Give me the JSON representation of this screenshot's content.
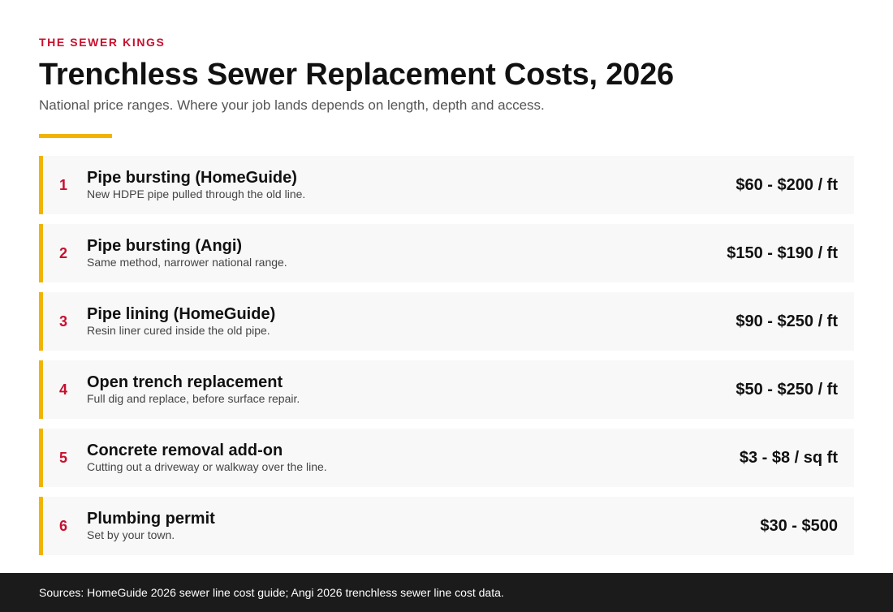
{
  "brand": "THE SEWER KINGS",
  "title": "Trenchless Sewer Replacement Costs, 2026",
  "subtitle": "National price ranges. Where your job lands depends on length, depth and access.",
  "colors": {
    "brand_red": "#c8102e",
    "accent_yellow": "#f0b400",
    "row_background": "#f8f8f8",
    "footer_background": "#1b1b1b"
  },
  "items": [
    {
      "number": "1",
      "name": "Pipe bursting (HomeGuide)",
      "description": "New HDPE pipe pulled through the old line.",
      "price": "$60 - $200 / ft"
    },
    {
      "number": "2",
      "name": "Pipe bursting (Angi)",
      "description": "Same method, narrower national range.",
      "price": "$150 - $190 / ft"
    },
    {
      "number": "3",
      "name": "Pipe lining (HomeGuide)",
      "description": "Resin liner cured inside the old pipe.",
      "price": "$90 - $250 / ft"
    },
    {
      "number": "4",
      "name": "Open trench replacement",
      "description": "Full dig and replace, before surface repair.",
      "price": "$50 - $250 / ft"
    },
    {
      "number": "5",
      "name": "Concrete removal add-on",
      "description": "Cutting out a driveway or walkway over the line.",
      "price": "$3 - $8 / sq ft"
    },
    {
      "number": "6",
      "name": "Plumbing permit",
      "description": "Set by your town.",
      "price": "$30 - $500"
    }
  ],
  "footer": {
    "sources": "Sources: HomeGuide 2026 sewer line cost guide; Angi 2026 trenchless sewer line cost data."
  }
}
